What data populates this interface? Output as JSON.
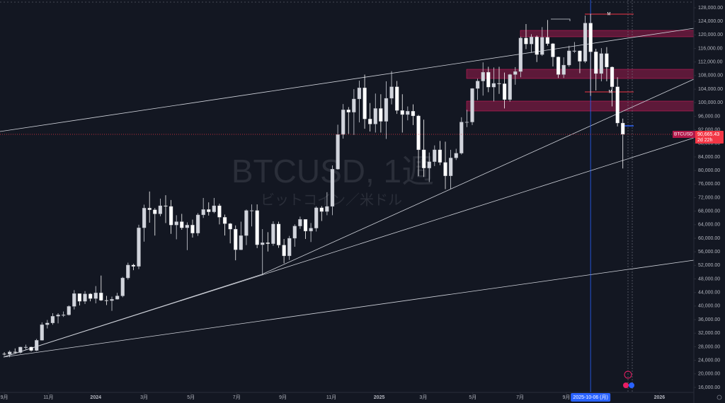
{
  "chart_data": {
    "type": "candlestick",
    "title": "BTCUSD, 1週",
    "subtitle": "ビットコイン／米ドル",
    "open": [
      25900,
      25800,
      26500,
      26300,
      27900,
      27900,
      26900,
      29900,
      34500,
      35000,
      37000,
      37400,
      37400,
      39900,
      43700,
      41400,
      43600,
      42200,
      43900,
      41700,
      41600,
      42000,
      43000,
      48300,
      52100,
      51700,
      63100,
      68900,
      68400,
      67200,
      69600,
      69400,
      63900,
      64900,
      63100,
      63900,
      61500,
      66900,
      68500,
      67800,
      69600,
      66200,
      64300,
      62700,
      56600,
      60800,
      68200,
      68200,
      58100,
      58700,
      58400,
      64200,
      58000,
      54800,
      60000,
      63600,
      65600,
      62100,
      63000,
      69000,
      67900,
      69400,
      80400,
      90600,
      97900,
      97200,
      101100,
      104400,
      95200,
      93700,
      98300,
      94500,
      101300,
      104700,
      97700,
      96500,
      97500,
      96100,
      86100,
      80700,
      82600,
      86100,
      82400,
      78400,
      83700,
      85100,
      94300,
      94300,
      104200,
      106400,
      109000,
      104600,
      105700,
      105600,
      100900,
      108300,
      109200,
      119100,
      117300,
      119400,
      114200,
      119300,
      117400,
      113500,
      108300,
      111100,
      115300,
      115300,
      112200,
      123500,
      115000,
      108600,
      114500,
      110500,
      104700,
      94000
    ],
    "high": [
      26400,
      26900,
      27500,
      28000,
      28600,
      28000,
      30300,
      35200,
      35900,
      37900,
      37900,
      38400,
      40200,
      44700,
      43400,
      44400,
      43800,
      45900,
      49000,
      43000,
      42800,
      43900,
      48600,
      52800,
      52500,
      64000,
      69900,
      73800,
      68900,
      71700,
      72700,
      71300,
      66800,
      67200,
      64700,
      65500,
      67400,
      71900,
      70600,
      71900,
      70200,
      67000,
      64500,
      63800,
      64900,
      68500,
      70000,
      70000,
      62700,
      61800,
      65000,
      64900,
      59800,
      60700,
      64100,
      66400,
      65000,
      64500,
      69400,
      69500,
      73600,
      81500,
      93500,
      99600,
      98700,
      104000,
      106500,
      108300,
      99900,
      102700,
      102500,
      106300,
      109300,
      106400,
      102500,
      98900,
      99500,
      96400,
      95000,
      85300,
      87400,
      88700,
      88500,
      86100,
      86400,
      95700,
      97900,
      104300,
      107100,
      111900,
      110600,
      110400,
      110600,
      108900,
      108500,
      110500,
      119500,
      123200,
      120200,
      119800,
      122300,
      124400,
      117600,
      113600,
      113400,
      116800,
      117900,
      115400,
      125700,
      126200,
      115900,
      116100,
      116400,
      110700,
      107500,
      95300
    ],
    "low": [
      25400,
      24900,
      26000,
      26000,
      27200,
      26600,
      26700,
      29800,
      33400,
      34500,
      34900,
      36800,
      37200,
      39000,
      40200,
      40600,
      41400,
      40800,
      41500,
      40300,
      38600,
      41900,
      42600,
      47800,
      50600,
      50900,
      59000,
      64600,
      60800,
      66500,
      64500,
      61300,
      59700,
      62500,
      56500,
      60200,
      60700,
      66000,
      66700,
      67400,
      64100,
      60800,
      58500,
      53500,
      56500,
      58000,
      63500,
      57100,
      49100,
      56100,
      57800,
      57200,
      52600,
      53600,
      57500,
      62800,
      59800,
      58900,
      62000,
      65100,
      66800,
      66800,
      80200,
      89400,
      90800,
      90500,
      94200,
      92300,
      91500,
      91200,
      91200,
      89300,
      99500,
      96700,
      91200,
      94800,
      93400,
      78300,
      78100,
      76600,
      81300,
      81600,
      74500,
      74500,
      83100,
      84700,
      92800,
      93400,
      100800,
      102100,
      103100,
      100400,
      102600,
      98300,
      100300,
      105300,
      107500,
      115800,
      114700,
      112000,
      113800,
      116800,
      110700,
      107300,
      107300,
      110600,
      114700,
      108700,
      111700,
      102000,
      103600,
      106300,
      106300,
      98900,
      93000,
      80600
    ],
    "close": [
      25800,
      26500,
      26300,
      27900,
      27900,
      26900,
      29900,
      34500,
      35000,
      37000,
      37400,
      37400,
      39900,
      43700,
      41400,
      43600,
      42200,
      43900,
      41700,
      41600,
      42000,
      43000,
      48300,
      52100,
      51700,
      63100,
      68900,
      68400,
      67200,
      69600,
      69400,
      63900,
      64900,
      63100,
      63900,
      61500,
      66900,
      68500,
      67800,
      69600,
      66200,
      64300,
      62700,
      56600,
      60800,
      68200,
      68200,
      58100,
      58700,
      58400,
      64200,
      58000,
      54800,
      60000,
      63600,
      65600,
      62100,
      63000,
      69000,
      67900,
      69400,
      80400,
      90600,
      97900,
      97200,
      101100,
      104400,
      95200,
      93700,
      98300,
      94500,
      101300,
      104700,
      97700,
      96500,
      97500,
      96100,
      86100,
      80700,
      82600,
      86100,
      82400,
      78400,
      83700,
      85100,
      94300,
      94300,
      104200,
      106400,
      109000,
      104600,
      105700,
      105600,
      100900,
      108300,
      109200,
      119100,
      117300,
      119400,
      114200,
      119300,
      117400,
      113500,
      108300,
      111100,
      115300,
      115300,
      112200,
      123500,
      115000,
      108600,
      114500,
      110500,
      104700,
      94000,
      90665.43
    ],
    "up_color": "#d1d4dc",
    "down_color": "#ffffff",
    "xlim": [
      -0.8,
      128.2
    ],
    "xticks": [
      {
        "value": 0,
        "label": "9月"
      },
      {
        "value": 8.2,
        "label": "11月"
      },
      {
        "value": 17,
        "label": "2024"
      },
      {
        "value": 26,
        "label": "3月"
      },
      {
        "value": 34.7,
        "label": "5月"
      },
      {
        "value": 43.2,
        "label": "7月"
      },
      {
        "value": 51.8,
        "label": "9月"
      },
      {
        "value": 60.8,
        "label": "11月"
      },
      {
        "value": 69.7,
        "label": "2025"
      },
      {
        "value": 77.9,
        "label": "3月"
      },
      {
        "value": 87.1,
        "label": "5月"
      },
      {
        "value": 95.9,
        "label": "7月"
      },
      {
        "value": 104.5,
        "label": "9月"
      },
      {
        "value": 121.8,
        "label": "2026"
      }
    ],
    "crosshair": {
      "value": 109,
      "label": "2025-10-06 (月)"
    },
    "ylim": [
      14530,
      130300
    ],
    "yticks": [
      {
        "value": 128000,
        "label": "128,000.00"
      },
      {
        "value": 124000,
        "label": "124,000.00"
      },
      {
        "value": 120000,
        "label": "120,000.00"
      },
      {
        "value": 116000,
        "label": "116,000.00"
      },
      {
        "value": 112000,
        "label": "112,000.00"
      },
      {
        "value": 108000,
        "label": "108,000.00"
      },
      {
        "value": 104000,
        "label": "104,000.00"
      },
      {
        "value": 100000,
        "label": "100,000.00"
      },
      {
        "value": 96000,
        "label": "96,000.00"
      },
      {
        "value": 92000,
        "label": "92,000.00"
      },
      {
        "value": 88000,
        "label": "88,000.00"
      },
      {
        "value": 84000,
        "label": "84,000.00"
      },
      {
        "value": 80000,
        "label": "80,000.00"
      },
      {
        "value": 76000,
        "label": "76,000.00"
      },
      {
        "value": 72000,
        "label": "72,000.00"
      },
      {
        "value": 68000,
        "label": "68,000.00"
      },
      {
        "value": 64000,
        "label": "64,000.00"
      },
      {
        "value": 60000,
        "label": "60,000.00"
      },
      {
        "value": 56000,
        "label": "56,000.00"
      },
      {
        "value": 52000,
        "label": "52,000.00"
      },
      {
        "value": 48000,
        "label": "48,000.00"
      },
      {
        "value": 44000,
        "label": "44,000.00"
      },
      {
        "value": 40000,
        "label": "40,000.00"
      },
      {
        "value": 36000,
        "label": "36,000.00"
      },
      {
        "value": 32000,
        "label": "32,000.00"
      },
      {
        "value": 28000,
        "label": "28,000.00"
      },
      {
        "value": 24000,
        "label": "24,000.00"
      },
      {
        "value": 20000,
        "label": "20,000.00"
      },
      {
        "value": 16000,
        "label": "16,000.00"
      }
    ],
    "price_badge": {
      "symbol": "BTCUSD",
      "price": "90,665.43",
      "countdown": "2d 22h"
    },
    "markers": [
      "M",
      "M"
    ]
  }
}
